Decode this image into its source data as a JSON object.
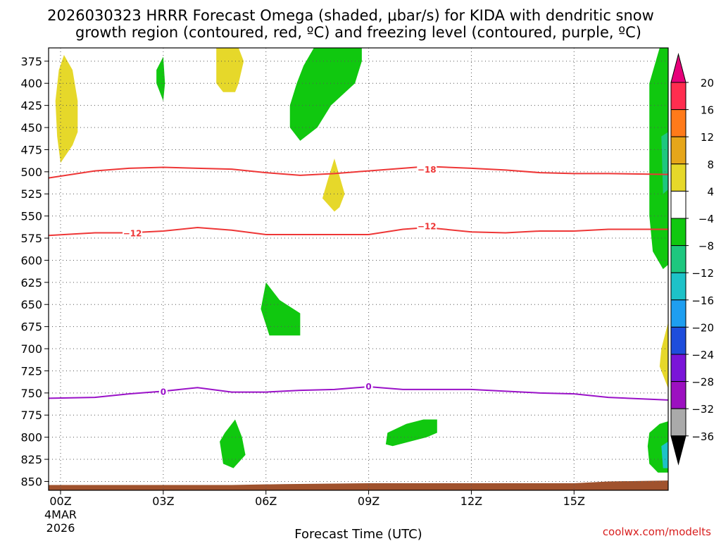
{
  "chart_data": {
    "type": "time-height cross section",
    "title_line1": "2026030323 HRRR Forecast Omega (shaded, μbar/s) for KIDA with dendritic snow",
    "title_line2": "growth region (contoured, red, ºC) and freezing level (contoured, purple, ºC)",
    "xlabel": "Forecast Time (UTC)",
    "credit": "coolwx.com/modelts",
    "xlim": [
      -0.35,
      17.75
    ],
    "ylim": [
      860,
      360
    ],
    "x_ticks": [
      {
        "x": 0,
        "label": "00Z",
        "sub1": "4MAR",
        "sub2": "2026"
      },
      {
        "x": 3,
        "label": "03Z"
      },
      {
        "x": 6,
        "label": "06Z"
      },
      {
        "x": 9,
        "label": "09Z"
      },
      {
        "x": 12,
        "label": "12Z"
      },
      {
        "x": 15,
        "label": "15Z"
      }
    ],
    "y_ticks": [
      375,
      400,
      425,
      450,
      475,
      500,
      525,
      550,
      575,
      600,
      625,
      650,
      675,
      700,
      725,
      750,
      775,
      800,
      825,
      850
    ],
    "colorbar": {
      "labels": [
        "20",
        "16",
        "12",
        "8",
        "4",
        "−4",
        "−8",
        "−12",
        "−16",
        "−20",
        "−24",
        "−28",
        "−32",
        "−36"
      ],
      "levels": [
        20,
        16,
        12,
        8,
        4,
        -4,
        -8,
        -12,
        -16,
        -20,
        -24,
        -28,
        -32,
        -36
      ],
      "colors": [
        "#ff2d4f",
        "#ff7a1a",
        "#e6a61a",
        "#e6d82a",
        "#ffffff",
        "#10c80f",
        "#1ec77f",
        "#1ec2c8",
        "#1e9ef0",
        "#1e4ddc",
        "#7a14d8",
        "#9c10c0",
        "#aaaaaa"
      ],
      "top_arrow_color": "#e6007a",
      "bottom_arrow_color": "#000000"
    },
    "contours": [
      {
        "name": "isotherm-minus18",
        "color": "#ee3636",
        "label": "−18",
        "label_at": [
          10.7,
          497
        ],
        "points": [
          [
            -0.35,
            507
          ],
          [
            1,
            499
          ],
          [
            2,
            496
          ],
          [
            3,
            495
          ],
          [
            4,
            496
          ],
          [
            5,
            497
          ],
          [
            6,
            501
          ],
          [
            7,
            504
          ],
          [
            8,
            502
          ],
          [
            9,
            499
          ],
          [
            10,
            496
          ],
          [
            10.7,
            494
          ],
          [
            12,
            496
          ],
          [
            13,
            498
          ],
          [
            14,
            501
          ],
          [
            15,
            502
          ],
          [
            16,
            502
          ],
          [
            17.75,
            503
          ]
        ]
      },
      {
        "name": "isotherm-minus12",
        "color": "#ee3636",
        "label": "−12",
        "label_at": [
          10.7,
          561
        ],
        "points": [
          [
            -0.35,
            572
          ],
          [
            1,
            569
          ],
          [
            2,
            569
          ],
          [
            3,
            567
          ],
          [
            4,
            563
          ],
          [
            5,
            566
          ],
          [
            6,
            571
          ],
          [
            7,
            571
          ],
          [
            8,
            571
          ],
          [
            9,
            571
          ],
          [
            10,
            565
          ],
          [
            10.7,
            563
          ],
          [
            12,
            568
          ],
          [
            13,
            569
          ],
          [
            14,
            567
          ],
          [
            15,
            567
          ],
          [
            16,
            565
          ],
          [
            17.75,
            565
          ]
        ]
      },
      {
        "name": "label-minus12-left",
        "color": "#ee3636",
        "label": "−12",
        "label_at": [
          2.1,
          569
        ],
        "points": []
      },
      {
        "name": "isotherm-0",
        "color": "#9a12c8",
        "label": "0",
        "label_at": [
          3,
          748
        ],
        "points": [
          [
            -0.35,
            756
          ],
          [
            1,
            755
          ],
          [
            2,
            751
          ],
          [
            3,
            748
          ],
          [
            4,
            744
          ],
          [
            5,
            749
          ],
          [
            6,
            749
          ],
          [
            7,
            747
          ],
          [
            8,
            746
          ],
          [
            9,
            743
          ],
          [
            10,
            746
          ],
          [
            11,
            746
          ],
          [
            12,
            746
          ],
          [
            13,
            748
          ],
          [
            14,
            750
          ],
          [
            15,
            751
          ],
          [
            16,
            755
          ],
          [
            17.75,
            758
          ]
        ]
      },
      {
        "name": "label-0-right",
        "color": "#9a12c8",
        "label": "0",
        "label_at": [
          9,
          742
        ],
        "points": []
      }
    ],
    "shaded_regions": [
      {
        "name": "yellow-blob-00z",
        "color": "#e6d82a",
        "points": [
          [
            0,
            490
          ],
          [
            -0.1,
            460
          ],
          [
            -0.15,
            420
          ],
          [
            -0.05,
            385
          ],
          [
            0.1,
            368
          ],
          [
            0.35,
            385
          ],
          [
            0.5,
            420
          ],
          [
            0.5,
            455
          ],
          [
            0.35,
            470
          ]
        ]
      },
      {
        "name": "green-blob-03z",
        "color": "#10c80f",
        "points": [
          [
            3,
            420
          ],
          [
            2.8,
            400
          ],
          [
            2.8,
            385
          ],
          [
            3,
            370
          ],
          [
            3.05,
            400
          ]
        ]
      },
      {
        "name": "yellow-blob-05z",
        "color": "#e6d82a",
        "points": [
          [
            4.55,
            355
          ],
          [
            5.2,
            355
          ],
          [
            5.35,
            375
          ],
          [
            5.2,
            400
          ],
          [
            5.1,
            410
          ],
          [
            4.75,
            410
          ],
          [
            4.55,
            400
          ],
          [
            4.55,
            370
          ]
        ]
      },
      {
        "name": "green-blob-07z",
        "color": "#10c80f",
        "points": [
          [
            7.4,
            355
          ],
          [
            8.8,
            355
          ],
          [
            8.8,
            375
          ],
          [
            8.6,
            400
          ],
          [
            7.9,
            425
          ],
          [
            7.5,
            450
          ],
          [
            7,
            465
          ],
          [
            6.7,
            450
          ],
          [
            6.7,
            425
          ],
          [
            6.9,
            400
          ],
          [
            7.1,
            380
          ]
        ]
      },
      {
        "name": "yellow-blob-08z",
        "color": "#e6d82a",
        "points": [
          [
            8,
            485
          ],
          [
            8.3,
            525
          ],
          [
            8.15,
            540
          ],
          [
            8,
            545
          ],
          [
            7.65,
            530
          ],
          [
            7.8,
            510
          ]
        ]
      },
      {
        "name": "green-blob-06z-mid",
        "color": "#10c80f",
        "points": [
          [
            6,
            625
          ],
          [
            6.4,
            645
          ],
          [
            7,
            660
          ],
          [
            7,
            685
          ],
          [
            6.1,
            685
          ],
          [
            5.85,
            655
          ]
        ]
      },
      {
        "name": "green-blob-05z-low",
        "color": "#10c80f",
        "points": [
          [
            5.1,
            780
          ],
          [
            5.3,
            800
          ],
          [
            5.4,
            820
          ],
          [
            5.05,
            835
          ],
          [
            4.75,
            830
          ],
          [
            4.65,
            805
          ],
          [
            4.8,
            795
          ]
        ]
      },
      {
        "name": "green-blob-10z-low",
        "color": "#10c80f",
        "points": [
          [
            10.6,
            780
          ],
          [
            11,
            780
          ],
          [
            11,
            795
          ],
          [
            10.7,
            800
          ],
          [
            9.7,
            810
          ],
          [
            9.5,
            808
          ],
          [
            9.55,
            795
          ],
          [
            10.1,
            785
          ]
        ]
      },
      {
        "name": "green-edge-17z",
        "color": "#10c80f",
        "points": [
          [
            17.5,
            355
          ],
          [
            17.75,
            355
          ],
          [
            17.75,
            605
          ],
          [
            17.6,
            610
          ],
          [
            17.3,
            590
          ],
          [
            17.2,
            550
          ],
          [
            17.2,
            400
          ]
        ]
      },
      {
        "name": "teal-edge-17z",
        "color": "#1ec77f",
        "points": [
          [
            17.55,
            460
          ],
          [
            17.75,
            455
          ],
          [
            17.75,
            520
          ],
          [
            17.6,
            525
          ]
        ]
      },
      {
        "name": "yellow-edge-17z",
        "color": "#e6d82a",
        "points": [
          [
            17.75,
            670
          ],
          [
            17.55,
            700
          ],
          [
            17.5,
            720
          ],
          [
            17.75,
            745
          ]
        ]
      },
      {
        "name": "green-blob-17z-low",
        "color": "#10c80f",
        "points": [
          [
            17.2,
            795
          ],
          [
            17.5,
            785
          ],
          [
            17.75,
            782
          ],
          [
            17.75,
            840
          ],
          [
            17.45,
            840
          ],
          [
            17.2,
            830
          ],
          [
            17.15,
            810
          ]
        ]
      },
      {
        "name": "teal-blob-17z-low",
        "color": "#1ec2c8",
        "points": [
          [
            17.55,
            810
          ],
          [
            17.75,
            805
          ],
          [
            17.75,
            835
          ],
          [
            17.6,
            835
          ]
        ]
      }
    ],
    "terrain": {
      "color": "#a0522d",
      "points": [
        [
          -0.35,
          854
        ],
        [
          5,
          854
        ],
        [
          6.5,
          853
        ],
        [
          9,
          852
        ],
        [
          12,
          852
        ],
        [
          15,
          852
        ],
        [
          16,
          850
        ],
        [
          17.75,
          849
        ]
      ]
    }
  }
}
